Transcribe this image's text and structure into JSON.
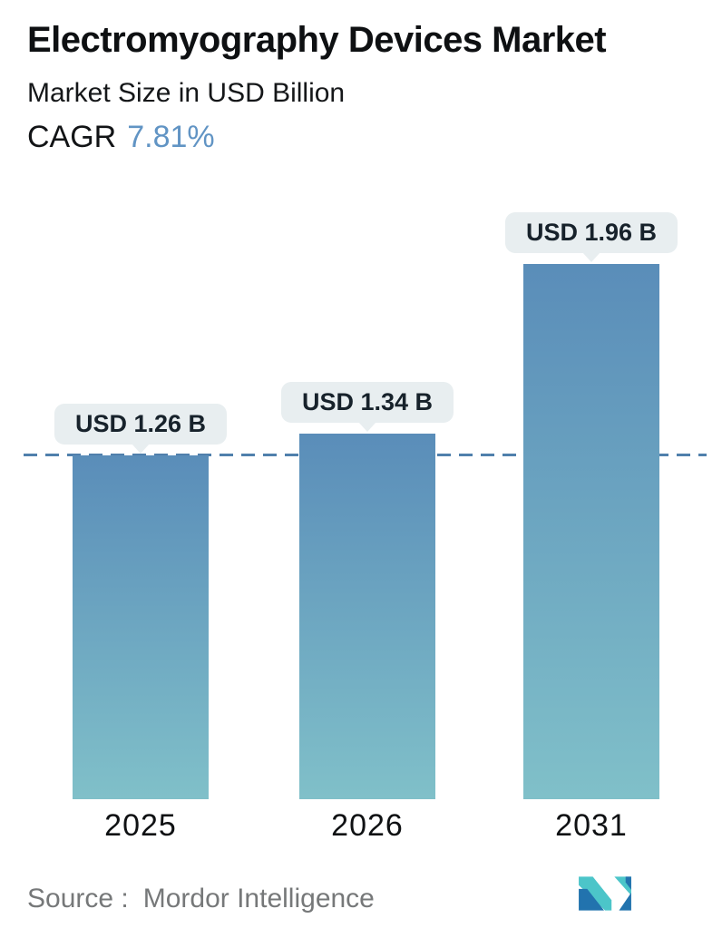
{
  "header": {
    "title": "Electromyography Devices Market",
    "subtitle": "Market Size in USD Billion",
    "cagr_label": "CAGR",
    "cagr_value": "7.81%",
    "cagr_value_color": "#6194c4"
  },
  "chart_data": {
    "type": "bar",
    "title": "Electromyography Devices Market",
    "subtitle": "Market Size in USD Billion",
    "unit": "USD billion",
    "cagr_percent": 7.81,
    "categories": [
      "2025",
      "2026",
      "2031"
    ],
    "values": [
      1.26,
      1.34,
      1.96
    ],
    "value_labels": [
      "USD 1.26 B",
      "USD 1.34 B",
      "USD 1.96 B"
    ],
    "ylim": [
      0,
      2.2
    ],
    "grid": false,
    "legend": "none",
    "reference_line": {
      "value": 1.26,
      "style": "dashed",
      "color": "#5080ac",
      "note": "horizontal dashed line at 2025 market-size level"
    },
    "style": {
      "bar_top_color": "#5a8db9",
      "bar_bottom_color": "#80c0c9",
      "label_bubble_bg": "#e8eef0",
      "label_text_color": "#17222b"
    }
  },
  "footer": {
    "source_label": "Source :",
    "source_value": "Mordor Intelligence",
    "logo_name": "mordor-intelligence-logo",
    "logo_colors": {
      "teal": "#4cc5c9",
      "blue": "#2273ae"
    }
  }
}
